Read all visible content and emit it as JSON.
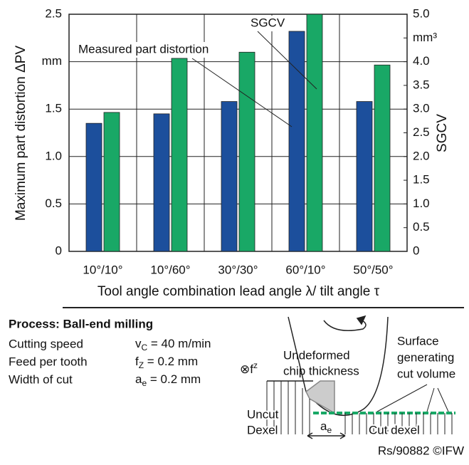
{
  "chart_data": {
    "type": "bar",
    "y_label": "Maximum part distortion ΔPV",
    "y2_label": "SGCV",
    "x_label": "Tool angle combination lead angle λ/ tilt angle τ",
    "categories": [
      "10°/10°",
      "10°/60°",
      "30°/30°",
      "60°/10°",
      "50°/50°"
    ],
    "series": [
      {
        "name": "Measured part distortion",
        "color": "#1c4f9c",
        "values": [
          1.35,
          1.45,
          1.58,
          2.32,
          1.58
        ]
      },
      {
        "name": "SGCV",
        "color": "#19a866",
        "axis": "y2",
        "values": [
          2.93,
          4.07,
          4.2,
          5.0,
          3.93
        ]
      }
    ],
    "ylim": [
      0,
      2.5
    ],
    "yticks": [
      0,
      0.5,
      {
        "value": 1,
        "label": "1.0"
      },
      1.5,
      {
        "value": 2,
        "label": "mm"
      },
      2.5
    ],
    "y2lim": [
      0,
      5
    ],
    "y2ticks": [
      0,
      0.5,
      {
        "value": 1,
        "label": "1.0"
      },
      1.5,
      {
        "value": 2,
        "label": "2.0"
      },
      2.5,
      {
        "value": 3,
        "label": "3.0"
      },
      3.5,
      {
        "value": 4,
        "label": "4.0"
      },
      {
        "value": 4.5,
        "label": "mm³"
      },
      {
        "value": 5,
        "label": "5.0"
      }
    ],
    "grid": true
  },
  "process": {
    "title": "Process: Ball-end milling",
    "rows": [
      {
        "label": "Cutting speed",
        "symbol": "v",
        "sub": "C",
        "value": " = 40 m/min"
      },
      {
        "label": "Feed per tooth",
        "symbol": "f",
        "sub": "Z",
        "value": " = 0.2 mm"
      },
      {
        "label": "Width of cut",
        "symbol": "a",
        "sub": "e",
        "value": " = 0.2 mm"
      }
    ]
  },
  "diagram": {
    "feed": "⊗f",
    "feed_sub": "z",
    "chip": [
      "Undeformed",
      "chip thickness"
    ],
    "surface": [
      "Surface",
      "generating",
      "cut volume"
    ],
    "uncut": [
      "Uncut",
      "Dexel"
    ],
    "cut": "Cut dexel",
    "ae": "a",
    "ae_sub": "e"
  },
  "footer": "Rs/90882 ©IFW"
}
